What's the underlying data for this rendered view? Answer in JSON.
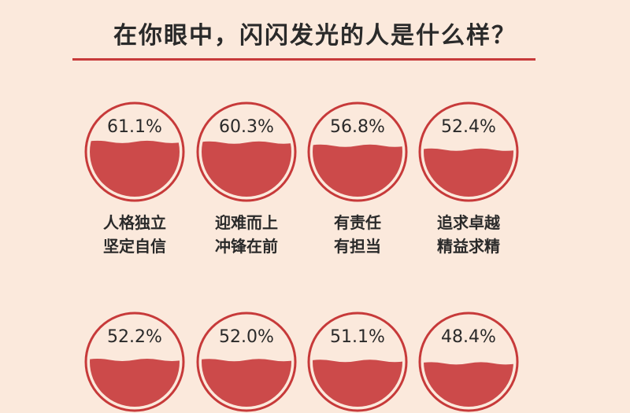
{
  "title": "在你眼中，闪闪发光的人是什么样？",
  "colors": {
    "background": "#fbe9dc",
    "accent": "#c73a3a",
    "fill": "#cc4a4a",
    "text": "#2a2a2a"
  },
  "chart_data": {
    "type": "bar",
    "title": "在你眼中，闪闪发光的人是什么样？",
    "categories": [
      [
        "人格独立",
        "坚定自信"
      ],
      [
        "迎难而上",
        "冲锋在前"
      ],
      [
        "有责任",
        "有担当"
      ],
      [
        "追求卓越",
        "精益求精"
      ],
      [],
      [],
      [],
      []
    ],
    "values": [
      61.1,
      60.3,
      56.8,
      52.4,
      52.2,
      52.0,
      51.1,
      48.4
    ],
    "value_labels": [
      "61.1%",
      "60.3%",
      "56.8%",
      "52.4%",
      "52.2%",
      "52.0%",
      "51.1%",
      "48.4%"
    ],
    "unit": "%",
    "ylim": [
      0,
      100
    ]
  }
}
